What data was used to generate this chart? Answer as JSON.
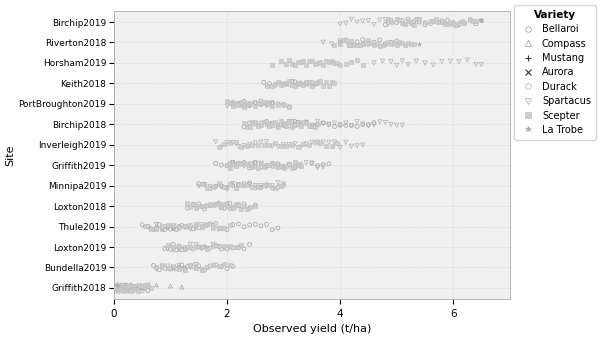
{
  "sites": [
    "Birchip2019",
    "Riverton2018",
    "Horsham2019",
    "Keith2018",
    "PortBroughton2019",
    "Birchip2018",
    "Inverleigh2019",
    "Griffith2019",
    "Minnipa2019",
    "Loxton2018",
    "Thule2019",
    "Loxton2019",
    "Bundella2019",
    "Griffith2018"
  ],
  "varieties": {
    "Bellaroi": {
      "marker": "o",
      "color": "#999999",
      "size": 8,
      "lw": 0.5,
      "face": "none"
    },
    "Compass": {
      "marker": "^",
      "color": "#999999",
      "size": 8,
      "lw": 0.5,
      "face": "none"
    },
    "Mustang": {
      "marker": "+",
      "color": "#333333",
      "size": 10,
      "lw": 0.8,
      "face": "none"
    },
    "Aurora": {
      "marker": "x",
      "color": "#333333",
      "size": 10,
      "lw": 0.8,
      "face": "none"
    },
    "Durack": {
      "marker": "o",
      "color": "#aaaaaa",
      "size": 7,
      "lw": 0.5,
      "face": "none"
    },
    "Spartacus": {
      "marker": "v",
      "color": "#aaaaaa",
      "size": 9,
      "lw": 0.5,
      "face": "none"
    },
    "Scepter": {
      "marker": "s",
      "color": "#bbbbbb",
      "size": 7,
      "lw": 0.4,
      "face": "#cccccc"
    },
    "La Trobe": {
      "marker": "*",
      "color": "#aaaaaa",
      "size": 10,
      "lw": 0.4,
      "face": "#aaaaaa"
    }
  },
  "data": {
    "Birchip2019": {
      "Bellaroi": [
        4.8,
        4.9,
        5.0,
        5.1,
        5.2,
        5.3,
        5.4,
        5.5,
        5.6,
        5.7,
        5.8,
        5.9,
        6.0,
        6.1,
        6.2,
        6.3,
        6.4
      ],
      "Compass": [],
      "Mustang": [
        3.8
      ],
      "Aurora": [
        3.6,
        3.75
      ],
      "Durack": [],
      "Spartacus": [
        4.0,
        4.1,
        4.2,
        4.3,
        4.4,
        4.5,
        4.6,
        4.7,
        4.8,
        4.85
      ],
      "Scepter": [
        4.85,
        4.9,
        5.0,
        5.05,
        5.1,
        5.15,
        5.2,
        5.25,
        5.3,
        5.35,
        5.4,
        5.5,
        5.6,
        5.65,
        5.7,
        5.75,
        5.8,
        5.85,
        5.9,
        5.95,
        6.0,
        6.05,
        6.1,
        6.15,
        6.2,
        6.3,
        6.35,
        6.4,
        6.5
      ],
      "La Trobe": [
        6.5
      ]
    },
    "Riverton2018": {
      "Bellaroi": [
        4.0,
        4.1,
        4.2,
        4.3,
        4.4,
        4.5,
        4.6,
        4.7,
        4.8,
        4.9,
        5.0
      ],
      "Compass": [],
      "Mustang": [],
      "Aurora": [
        3.3,
        3.5,
        3.55,
        3.7
      ],
      "Durack": [],
      "Spartacus": [
        3.7,
        3.85,
        4.0,
        4.15
      ],
      "Scepter": [
        3.9,
        4.0,
        4.05,
        4.1,
        4.15,
        4.2,
        4.25,
        4.3,
        4.35,
        4.4,
        4.45,
        4.5,
        4.55,
        4.6,
        4.65,
        4.7,
        4.75,
        4.8,
        4.85,
        4.9,
        4.95,
        5.0,
        5.05,
        5.1,
        5.15,
        5.2,
        5.25,
        5.3
      ],
      "La Trobe": [
        5.4
      ]
    },
    "Horsham2019": {
      "Bellaroi": [],
      "Compass": [],
      "Mustang": [
        2.3,
        2.55,
        2.75,
        3.0
      ],
      "Aurora": [
        2.2,
        2.4,
        2.7
      ],
      "Durack": [],
      "Spartacus": [
        4.6,
        4.75,
        4.9,
        5.0,
        5.1,
        5.2,
        5.35,
        5.5,
        5.65,
        5.8,
        5.95,
        6.1,
        6.25,
        6.4,
        6.5
      ],
      "Scepter": [
        2.8,
        2.95,
        3.05,
        3.1,
        3.15,
        3.2,
        3.25,
        3.3,
        3.35,
        3.4,
        3.45,
        3.5,
        3.55,
        3.6,
        3.65,
        3.7,
        3.75,
        3.8,
        3.85,
        3.9,
        3.95,
        4.0,
        4.1,
        4.2,
        4.3,
        4.4
      ],
      "La Trobe": []
    },
    "Keith2018": {
      "Bellaroi": [
        2.65,
        2.75,
        2.85,
        2.95,
        3.0,
        3.05,
        3.1,
        3.15,
        3.2,
        3.25,
        3.3,
        3.35,
        3.4,
        3.45,
        3.5,
        3.55,
        3.6
      ],
      "Compass": [],
      "Mustang": [],
      "Aurora": [
        1.7,
        1.85,
        2.0,
        2.15
      ],
      "Durack": [],
      "Spartacus": [],
      "Scepter": [
        2.7,
        2.8,
        2.85,
        2.9,
        2.95,
        3.0,
        3.05,
        3.1,
        3.15,
        3.2,
        3.25,
        3.3,
        3.35,
        3.4,
        3.45,
        3.5,
        3.55,
        3.6,
        3.65,
        3.7,
        3.75,
        3.8,
        3.85,
        3.9
      ],
      "La Trobe": []
    },
    "PortBroughton2019": {
      "Bellaroi": [
        2.1,
        2.2,
        2.3,
        2.4,
        2.5,
        2.6,
        2.7,
        2.8,
        2.9,
        3.0,
        3.1
      ],
      "Compass": [],
      "Mustang": [],
      "Aurora": [
        1.5,
        1.6,
        1.75
      ],
      "Durack": [],
      "Spartacus": [
        2.0,
        2.05,
        2.1,
        2.15,
        2.2,
        2.25,
        2.3,
        2.35,
        2.4,
        2.5,
        2.6,
        2.7,
        2.8
      ],
      "Scepter": [
        2.0,
        2.05,
        2.1,
        2.15,
        2.2,
        2.25,
        2.3,
        2.35,
        2.4,
        2.5,
        2.55,
        2.6,
        2.65,
        2.7,
        2.75,
        2.8,
        2.9,
        3.0,
        3.1
      ],
      "La Trobe": []
    },
    "Birchip2018": {
      "Bellaroi": [
        2.3,
        2.4,
        2.5,
        2.6,
        2.7,
        2.8,
        2.9,
        3.0,
        3.05,
        3.1,
        3.15,
        3.2,
        3.25,
        3.3,
        3.4,
        3.5,
        3.55,
        3.6,
        3.7,
        3.8,
        3.9,
        4.0,
        4.1,
        4.2,
        4.3,
        4.4,
        4.5,
        4.6
      ],
      "Compass": [],
      "Mustang": [],
      "Aurora": [
        1.7,
        1.85
      ],
      "Durack": [],
      "Spartacus": [
        2.8,
        2.9,
        3.0,
        3.1,
        3.2,
        3.3,
        3.4,
        3.5,
        3.6,
        3.7,
        3.8,
        3.9,
        4.0,
        4.1,
        4.2,
        4.3,
        4.4,
        4.5,
        4.6,
        4.7,
        4.8,
        4.9,
        5.0,
        5.1
      ],
      "Scepter": [
        2.3,
        2.35,
        2.4,
        2.45,
        2.5,
        2.55,
        2.6,
        2.65,
        2.7,
        2.75,
        2.8,
        2.85,
        2.9,
        2.95,
        3.0,
        3.05,
        3.1,
        3.15,
        3.2,
        3.25,
        3.3,
        3.35,
        3.4,
        3.45,
        3.5,
        3.55,
        3.6
      ],
      "La Trobe": []
    },
    "Inverleigh2019": {
      "Bellaroi": [],
      "Compass": [],
      "Mustang": [],
      "Aurora": [
        0.85,
        1.0,
        1.15,
        1.3,
        1.5,
        1.65,
        1.8,
        2.0
      ],
      "Durack": [],
      "Spartacus": [
        1.8,
        1.9,
        2.0,
        2.1,
        2.2,
        2.3,
        2.4,
        2.5,
        2.6,
        2.7,
        2.8,
        2.9,
        3.0,
        3.1,
        3.2,
        3.3,
        3.4,
        3.5,
        3.6,
        3.7,
        3.8,
        3.9,
        4.0,
        4.1,
        4.2,
        4.3,
        4.4
      ],
      "Scepter": [
        1.85,
        1.95,
        2.05,
        2.15,
        2.25,
        2.35,
        2.45,
        2.55,
        2.65,
        2.75,
        2.85,
        2.95,
        3.05,
        3.15,
        3.25,
        3.35,
        3.45,
        3.55,
        3.65,
        3.75,
        3.85,
        3.95
      ],
      "La Trobe": []
    },
    "Griffith2019": {
      "Bellaroi": [
        1.8,
        1.9,
        2.0,
        2.05,
        2.1,
        2.15,
        2.2,
        2.3,
        2.4,
        2.5,
        2.6,
        2.7,
        2.8,
        2.9,
        3.0,
        3.1,
        3.2,
        3.3,
        3.5,
        3.6,
        3.7,
        3.8
      ],
      "Compass": [],
      "Mustang": [],
      "Aurora": [
        0.8,
        0.95,
        1.1,
        1.25,
        1.4,
        1.55,
        1.7,
        1.85,
        2.0
      ],
      "Durack": [],
      "Spartacus": [
        2.1,
        2.2,
        2.3,
        2.4,
        2.5,
        2.6,
        2.7,
        2.8,
        2.9,
        3.0,
        3.1,
        3.2,
        3.3,
        3.4,
        3.5,
        3.6,
        3.7
      ],
      "Scepter": [
        2.0,
        2.05,
        2.1,
        2.15,
        2.2,
        2.25,
        2.3,
        2.35,
        2.4,
        2.45,
        2.5,
        2.55,
        2.6,
        2.65,
        2.7,
        2.75,
        2.8,
        2.85,
        2.9,
        2.95,
        3.0,
        3.05,
        3.1,
        3.15,
        3.2,
        3.25,
        3.3
      ],
      "La Trobe": []
    },
    "Minnipa2019": {
      "Bellaroi": [
        1.5,
        1.6,
        1.7,
        1.8,
        1.9,
        2.0,
        2.1,
        2.2,
        2.3,
        2.4,
        2.5,
        2.6,
        2.7,
        2.8,
        2.9,
        3.0
      ],
      "Compass": [],
      "Mustang": [],
      "Aurora": [
        0.85,
        1.0,
        1.15,
        1.3,
        1.45,
        1.6
      ],
      "Durack": [],
      "Spartacus": [
        1.5,
        1.6,
        1.7,
        1.8,
        1.9,
        2.0,
        2.1,
        2.2,
        2.3,
        2.4,
        2.5,
        2.6,
        2.7,
        2.8,
        2.9,
        3.0
      ],
      "Scepter": [
        1.55,
        1.65,
        1.75,
        1.85,
        1.95,
        2.05,
        2.15,
        2.25,
        2.35,
        2.45,
        2.55,
        2.65,
        2.75,
        2.85,
        2.95
      ],
      "La Trobe": []
    },
    "Loxton2018": {
      "Bellaroi": [
        1.3,
        1.4,
        1.5,
        1.6,
        1.7,
        1.8,
        1.85,
        1.9,
        1.95,
        2.0,
        2.05,
        2.1,
        2.15,
        2.2,
        2.3,
        2.4,
        2.5
      ],
      "Compass": [],
      "Mustang": [],
      "Aurora": [
        0.7,
        0.8,
        0.85,
        0.9,
        0.95,
        1.0,
        1.05,
        1.1,
        1.15,
        1.2,
        1.3,
        1.4,
        1.5,
        1.6,
        1.7,
        1.8,
        1.9,
        2.0
      ],
      "Durack": [],
      "Spartacus": [],
      "Scepter": [
        1.3,
        1.35,
        1.4,
        1.45,
        1.5,
        1.55,
        1.6,
        1.65,
        1.7,
        1.75,
        1.8,
        1.85,
        1.9,
        1.95,
        2.0,
        2.05,
        2.1,
        2.15,
        2.2,
        2.25,
        2.3,
        2.35,
        2.4,
        2.5
      ],
      "La Trobe": []
    },
    "Thule2019": {
      "Bellaroi": [
        0.5,
        0.6,
        0.65,
        0.7,
        0.75,
        0.8,
        0.85,
        0.9,
        0.95,
        1.0,
        1.05,
        1.1,
        1.15,
        1.2,
        1.3,
        1.4,
        1.5,
        1.6,
        1.7,
        1.8,
        1.9,
        2.0,
        2.1,
        2.2,
        2.3,
        2.4,
        2.5,
        2.6,
        2.7,
        2.8,
        2.9
      ],
      "Compass": [],
      "Mustang": [],
      "Aurora": [
        0.2,
        0.3,
        0.4,
        0.5,
        0.6,
        0.7,
        0.8,
        0.9,
        1.0,
        1.1,
        1.2,
        1.3,
        1.4
      ],
      "Durack": [],
      "Spartacus": [
        0.75,
        0.85,
        0.95,
        1.05,
        1.15,
        1.25,
        1.35,
        1.45,
        1.55,
        1.65,
        1.75,
        1.85
      ],
      "Scepter": [
        0.55,
        0.65,
        0.75,
        0.85,
        0.95,
        1.05,
        1.15,
        1.25,
        1.35,
        1.45,
        1.55,
        1.65,
        1.75,
        1.85,
        1.95,
        2.05
      ],
      "La Trobe": []
    },
    "Loxton2019": {
      "Bellaroi": [
        0.9,
        1.0,
        1.05,
        1.1,
        1.15,
        1.2,
        1.25,
        1.3,
        1.4,
        1.5,
        1.6,
        1.7,
        1.8,
        1.9,
        2.0,
        2.1,
        2.2,
        2.3,
        2.4
      ],
      "Compass": [],
      "Mustang": [],
      "Aurora": [
        0.5,
        0.6,
        0.7,
        0.8,
        0.9,
        1.0,
        1.1,
        1.2,
        1.3
      ],
      "Durack": [],
      "Spartacus": [
        0.95,
        1.05,
        1.15,
        1.25,
        1.35,
        1.45,
        1.55,
        1.65,
        1.75,
        1.85,
        1.95,
        2.05
      ],
      "Scepter": [
        0.95,
        1.05,
        1.15,
        1.25,
        1.35,
        1.45,
        1.55,
        1.65,
        1.75,
        1.85,
        1.95,
        2.05,
        2.15,
        2.25
      ],
      "La Trobe": []
    },
    "Bundella2019": {
      "Bellaroi": [
        0.7,
        0.8,
        0.9,
        1.0,
        1.05,
        1.1,
        1.15,
        1.2,
        1.25,
        1.3,
        1.4,
        1.5,
        1.6,
        1.7,
        1.8,
        1.9,
        2.0,
        2.1
      ],
      "Compass": [],
      "Mustang": [],
      "Aurora": [
        0.3,
        0.4
      ],
      "Durack": [],
      "Spartacus": [
        0.75,
        0.85,
        0.95,
        1.05,
        1.15,
        1.25,
        1.35,
        1.45,
        1.55,
        1.65
      ],
      "Scepter": [
        0.75,
        0.85,
        0.95,
        1.05,
        1.15,
        1.25,
        1.35,
        1.45,
        1.55,
        1.65,
        1.75,
        1.85,
        1.95,
        2.05
      ],
      "La Trobe": []
    },
    "Griffith2018": {
      "Bellaroi": [
        0.05,
        0.1,
        0.15,
        0.2,
        0.3,
        0.4,
        0.5,
        0.6
      ],
      "Compass": [
        0.75,
        1.0,
        1.2
      ],
      "Mustang": [
        0.1,
        0.15,
        0.2,
        0.25,
        0.3,
        0.35,
        0.4,
        0.45,
        0.5,
        0.55,
        0.6,
        0.65,
        0.7,
        0.75,
        0.8,
        0.9
      ],
      "Aurora": [
        0.02,
        0.05,
        0.08,
        0.12,
        0.15,
        0.2
      ],
      "Durack": [
        0.05,
        0.1,
        0.15,
        0.2,
        0.25,
        0.3,
        0.35,
        0.4,
        0.5,
        0.6
      ],
      "Spartacus": [
        0.02,
        0.05,
        0.08,
        0.1,
        0.12,
        0.15,
        0.18,
        0.2,
        0.25,
        0.3,
        0.35,
        0.4,
        0.45,
        0.5,
        0.55,
        0.6
      ],
      "Scepter": [
        0.02,
        0.05,
        0.08,
        0.1,
        0.12,
        0.15,
        0.18,
        0.2,
        0.23,
        0.25,
        0.28,
        0.3,
        0.33,
        0.35,
        0.38,
        0.4,
        0.43,
        0.45,
        0.5,
        0.55,
        0.6,
        0.65
      ],
      "La Trobe": []
    }
  },
  "xlabel": "Observed yield (t/ha)",
  "ylabel": "Site",
  "xlim": [
    0,
    7.0
  ],
  "xticks": [
    0,
    2,
    4,
    6
  ],
  "legend_title": "Variety",
  "bg_color": "#ffffff",
  "grid_color": "#dddddd",
  "plot_bg": "#f0f0f0"
}
